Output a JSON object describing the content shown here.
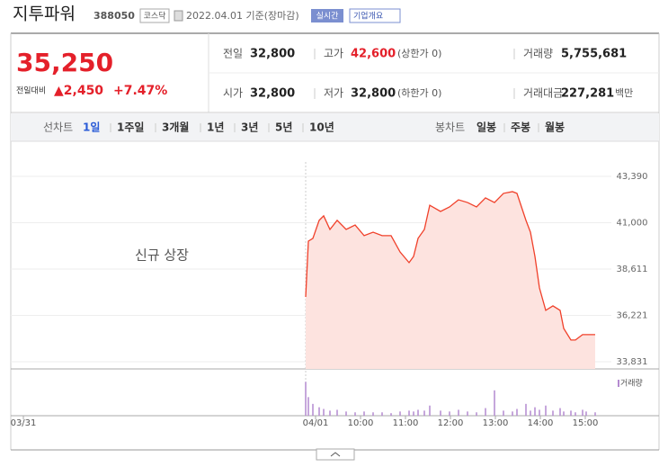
{
  "header": {
    "name": "지투파워",
    "code": "388050",
    "market": "코스닥",
    "date": "2022.04.01 기준(장마감)",
    "realtime": "실시간",
    "company_info": "기업개요"
  },
  "quote": {
    "price": "35,250",
    "change_label": "전일대비",
    "change": "▲2,450",
    "rate": "+7.47%",
    "stats": [
      {
        "label": "전일",
        "value": "32,800"
      },
      {
        "label": "고가",
        "value": "42,600",
        "note": "(상한가 0)"
      },
      {
        "label": "거래량",
        "value": "5,755,681"
      },
      {
        "label": "시가",
        "value": "32,800"
      },
      {
        "label": "저가",
        "value": "32,800",
        "note": "(하한가 0)"
      },
      {
        "label": "거래대금",
        "value": "227,281",
        "note": "백만"
      }
    ]
  },
  "tabs": {
    "line_label": "선차트",
    "line": [
      "1일",
      "1주일",
      "3개월",
      "1년",
      "3년",
      "5년",
      "10년"
    ],
    "candle_label": "봉차트",
    "candle": [
      "일봉",
      "주봉",
      "월봉"
    ]
  },
  "chart_data": {
    "type": "line",
    "annotation": "신규 상장",
    "volume_label": "거래량",
    "color": "#f0402a",
    "fill": "#fde3df",
    "volume_color": "#b48ad0",
    "x": [
      6.28,
      6.34,
      6.44,
      6.58,
      6.68,
      6.82,
      6.98,
      7.18,
      7.38,
      7.58,
      7.78,
      7.98,
      8.18,
      8.38,
      8.58,
      8.68,
      8.78,
      8.92,
      9.04,
      9.28,
      9.48,
      9.68,
      9.88,
      10.08,
      10.28,
      10.48,
      10.68,
      10.88,
      10.98,
      11.18,
      11.28,
      11.38,
      11.48,
      11.62,
      11.78,
      11.94,
      12.02,
      12.18,
      12.28,
      12.44,
      12.52,
      12.72
    ],
    "values": [
      37170,
      40050,
      40190,
      41120,
      41350,
      40650,
      41120,
      40650,
      40880,
      40330,
      40510,
      40330,
      40330,
      39490,
      38940,
      39260,
      40190,
      40650,
      41900,
      41580,
      41810,
      42180,
      42040,
      41810,
      42280,
      42040,
      42510,
      42600,
      42510,
      41120,
      40510,
      39260,
      37640,
      36480,
      36710,
      36480,
      35550,
      34950,
      34950,
      35230,
      35230,
      35230
    ],
    "volume": [
      40,
      22,
      14,
      10,
      8,
      6,
      7,
      5,
      4,
      5,
      4,
      4,
      3,
      5,
      6,
      5,
      7,
      6,
      12,
      6,
      5,
      7,
      5,
      4,
      9,
      30,
      6,
      5,
      8,
      14,
      6,
      10,
      7,
      12,
      6,
      9,
      5,
      6,
      4,
      7,
      5,
      4
    ],
    "xlim": [
      -0.28,
      13.08
    ],
    "ylim": [
      33460,
      44130
    ],
    "y2lim": [
      0,
      50
    ],
    "xticks": [
      {
        "value": 0,
        "label": "03/31"
      },
      {
        "value": 6.5,
        "label": "04/01"
      },
      {
        "value": 7.5,
        "label": "10:00"
      },
      {
        "value": 8.5,
        "label": "11:00"
      },
      {
        "value": 9.5,
        "label": "12:00"
      },
      {
        "value": 10.5,
        "label": "13:00"
      },
      {
        "value": 11.5,
        "label": "14:00"
      },
      {
        "value": 12.5,
        "label": "15:00"
      }
    ],
    "yticks": [
      {
        "value": 33831,
        "label": "33,831"
      },
      {
        "value": 36221,
        "label": "36,221"
      },
      {
        "value": 38611,
        "label": "38,611"
      },
      {
        "value": 41000,
        "label": "41,000"
      },
      {
        "value": 43390,
        "label": "43,390"
      }
    ]
  }
}
